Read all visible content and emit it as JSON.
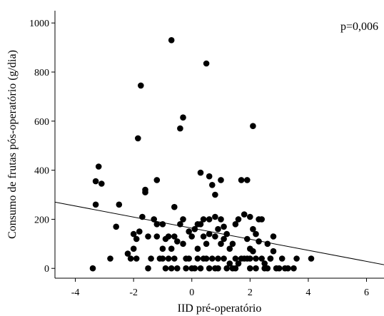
{
  "chart_data": {
    "type": "scatter",
    "title": "",
    "xlabel": "IID pré-operatório",
    "ylabel": "Consumo de frutas pós-operatório (g/dia)",
    "annotation": "p=0,006",
    "xlim": [
      -4.7,
      6.6
    ],
    "ylim": [
      -40,
      1050
    ],
    "xticks": [
      -4,
      -2,
      0,
      2,
      4,
      6
    ],
    "yticks": [
      0,
      200,
      400,
      600,
      800,
      1000
    ],
    "xtick_labels": [
      "-4",
      "-2",
      "0",
      "2",
      "4",
      "6"
    ],
    "ytick_labels": [
      "0",
      "200",
      "400",
      "600",
      "800",
      "1000"
    ],
    "grid": false,
    "legend": "none",
    "point_color": "#000000",
    "fit_line": {
      "x": [
        -4.7,
        6.6
      ],
      "y": [
        270,
        15
      ]
    },
    "points": [
      [
        -3.4,
        0
      ],
      [
        -3.3,
        355
      ],
      [
        -3.2,
        415
      ],
      [
        -3.3,
        260
      ],
      [
        -3.1,
        345
      ],
      [
        -2.8,
        40
      ],
      [
        -2.6,
        170
      ],
      [
        -2.5,
        260
      ],
      [
        -2.2,
        60
      ],
      [
        -2.0,
        140
      ],
      [
        -2.0,
        80
      ],
      [
        -1.9,
        120
      ],
      [
        -1.9,
        40
      ],
      [
        -1.8,
        150
      ],
      [
        -1.7,
        210
      ],
      [
        -1.6,
        310
      ],
      [
        -1.6,
        320
      ],
      [
        -1.5,
        130
      ],
      [
        -1.4,
        40
      ],
      [
        -1.3,
        200
      ],
      [
        -1.2,
        180
      ],
      [
        -1.2,
        360
      ],
      [
        -1.0,
        180
      ],
      [
        -1.0,
        40
      ],
      [
        -0.9,
        0
      ],
      [
        -0.8,
        130
      ],
      [
        -0.7,
        930
      ],
      [
        -0.7,
        80
      ],
      [
        -0.6,
        40
      ],
      [
        -0.6,
        250
      ],
      [
        -0.5,
        110
      ],
      [
        -0.4,
        570
      ],
      [
        -0.3,
        615
      ],
      [
        -0.3,
        200
      ],
      [
        -0.2,
        0
      ],
      [
        -0.1,
        150
      ],
      [
        0.0,
        0
      ],
      [
        0.1,
        160
      ],
      [
        0.2,
        40
      ],
      [
        0.3,
        390
      ],
      [
        0.3,
        180
      ],
      [
        0.4,
        130
      ],
      [
        0.5,
        835
      ],
      [
        0.5,
        40
      ],
      [
        0.6,
        375
      ],
      [
        0.6,
        200
      ],
      [
        0.7,
        340
      ],
      [
        0.8,
        300
      ],
      [
        0.8,
        130
      ],
      [
        0.9,
        40
      ],
      [
        1.0,
        360
      ],
      [
        1.0,
        200
      ],
      [
        1.1,
        170
      ],
      [
        1.2,
        0
      ],
      [
        1.3,
        20
      ],
      [
        1.4,
        0
      ],
      [
        1.5,
        40
      ],
      [
        1.6,
        200
      ],
      [
        1.7,
        360
      ],
      [
        1.8,
        40
      ],
      [
        1.9,
        360
      ],
      [
        2.0,
        210
      ],
      [
        2.0,
        40
      ],
      [
        2.1,
        580
      ],
      [
        2.1,
        70
      ],
      [
        2.2,
        0
      ],
      [
        2.3,
        200
      ],
      [
        2.4,
        40
      ],
      [
        2.5,
        20
      ],
      [
        2.6,
        100
      ],
      [
        2.7,
        40
      ],
      [
        2.8,
        130
      ],
      [
        2.9,
        0
      ],
      [
        3.0,
        0
      ],
      [
        3.1,
        40
      ],
      [
        3.2,
        0
      ],
      [
        3.3,
        0
      ],
      [
        3.5,
        0
      ],
      [
        3.6,
        40
      ],
      [
        4.1,
        40
      ],
      [
        -2.1,
        40
      ],
      [
        -1.85,
        530
      ],
      [
        -1.75,
        745
      ],
      [
        -1.2,
        130
      ],
      [
        -1.1,
        40
      ],
      [
        -0.9,
        120
      ],
      [
        -0.8,
        40
      ],
      [
        -0.7,
        0
      ],
      [
        -0.5,
        0
      ],
      [
        -0.4,
        180
      ],
      [
        -0.2,
        40
      ],
      [
        0.1,
        0
      ],
      [
        0.2,
        80
      ],
      [
        0.3,
        0
      ],
      [
        0.4,
        200
      ],
      [
        0.5,
        100
      ],
      [
        0.6,
        0
      ],
      [
        0.7,
        40
      ],
      [
        0.8,
        210
      ],
      [
        0.9,
        0
      ],
      [
        1.0,
        100
      ],
      [
        1.1,
        40
      ],
      [
        1.2,
        140
      ],
      [
        1.4,
        100
      ],
      [
        1.5,
        0
      ],
      [
        1.7,
        40
      ],
      [
        1.8,
        220
      ],
      [
        1.9,
        120
      ],
      [
        2.0,
        0
      ],
      [
        2.1,
        160
      ],
      [
        2.2,
        40
      ],
      [
        2.4,
        200
      ],
      [
        2.5,
        0
      ],
      [
        2.7,
        40
      ],
      [
        2.8,
        70
      ],
      [
        -0.6,
        130
      ],
      [
        -0.3,
        100
      ],
      [
        0.0,
        130
      ],
      [
        0.2,
        180
      ],
      [
        0.6,
        140
      ],
      [
        0.9,
        160
      ],
      [
        1.3,
        80
      ],
      [
        1.6,
        20
      ],
      [
        2.3,
        110
      ],
      [
        -1.5,
        0
      ],
      [
        -1.0,
        80
      ],
      [
        -0.1,
        40
      ],
      [
        0.4,
        40
      ],
      [
        0.8,
        0
      ],
      [
        1.1,
        120
      ],
      [
        1.5,
        180
      ],
      [
        1.9,
        40
      ],
      [
        2.2,
        140
      ],
      [
        2.6,
        0
      ],
      [
        2.0,
        80
      ]
    ]
  }
}
